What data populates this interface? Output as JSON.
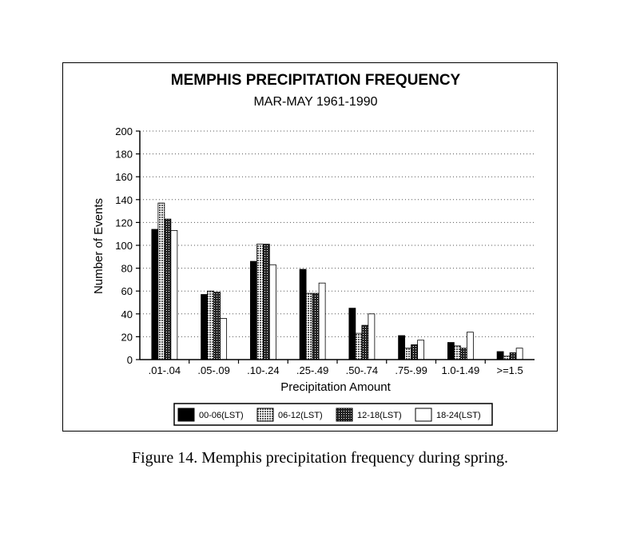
{
  "caption": "Figure 14.  Memphis precipitation frequency during spring.",
  "colors": {
    "black": "#000000",
    "white": "#ffffff",
    "grid": "#555555"
  },
  "chart_data": {
    "type": "bar",
    "title": "MEMPHIS PRECIPITATION FREQUENCY",
    "subtitle": "MAR-MAY 1961-1990",
    "xlabel": "Precipitation Amount",
    "ylabel": "Number of Events",
    "ylim": [
      0,
      200
    ],
    "yticks": [
      0,
      20,
      40,
      60,
      80,
      100,
      120,
      140,
      160,
      180,
      200
    ],
    "grid": true,
    "legend_position": "bottom",
    "categories": [
      ".01-.04",
      ".05-.09",
      ".10-.24",
      ".25-.49",
      ".50-.74",
      ".75-.99",
      "1.0-1.49",
      ">=1.5"
    ],
    "series": [
      {
        "name": "00-06(LST)",
        "fill": "solid-black",
        "values": [
          114,
          57,
          86,
          79,
          45,
          21,
          15,
          7
        ]
      },
      {
        "name": "06-12(LST)",
        "fill": "gray-hatch",
        "values": [
          137,
          60,
          101,
          58,
          23,
          10,
          12,
          3
        ]
      },
      {
        "name": "12-18(LST)",
        "fill": "dark-hatch",
        "values": [
          123,
          59,
          101,
          58,
          30,
          13,
          10,
          6
        ]
      },
      {
        "name": "18-24(LST)",
        "fill": "white",
        "values": [
          113,
          36,
          83,
          67,
          40,
          17,
          24,
          10
        ]
      }
    ]
  }
}
